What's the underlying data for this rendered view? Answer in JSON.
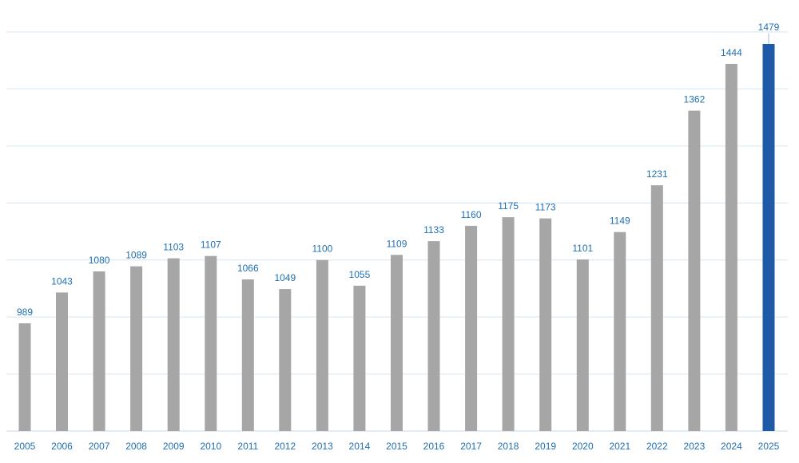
{
  "chart_data": {
    "type": "bar",
    "categories": [
      "2005",
      "2006",
      "2007",
      "2008",
      "2009",
      "2010",
      "2011",
      "2012",
      "2013",
      "2014",
      "2015",
      "2016",
      "2017",
      "2018",
      "2019",
      "2020",
      "2021",
      "2022",
      "2023",
      "2024",
      "2025"
    ],
    "values": [
      989,
      1043,
      1080,
      1089,
      1103,
      1107,
      1066,
      1049,
      1100,
      1055,
      1109,
      1133,
      1160,
      1175,
      1173,
      1101,
      1149,
      1231,
      1362,
      1444,
      1479
    ],
    "ylim": [
      800,
      1500
    ],
    "y_gridlines": [
      800,
      900,
      1000,
      1100,
      1200,
      1300,
      1400,
      1500
    ],
    "grid": true,
    "show_y_axis_labels": false,
    "data_labels": true,
    "highlight_category": "2025"
  },
  "colors": {
    "bar": "#a6a6a6",
    "highlight_bar": "#1f5aa6",
    "label_text": "#1f6fb5",
    "gridline": "#d6e6f2",
    "axis": "#c7d9ea"
  }
}
